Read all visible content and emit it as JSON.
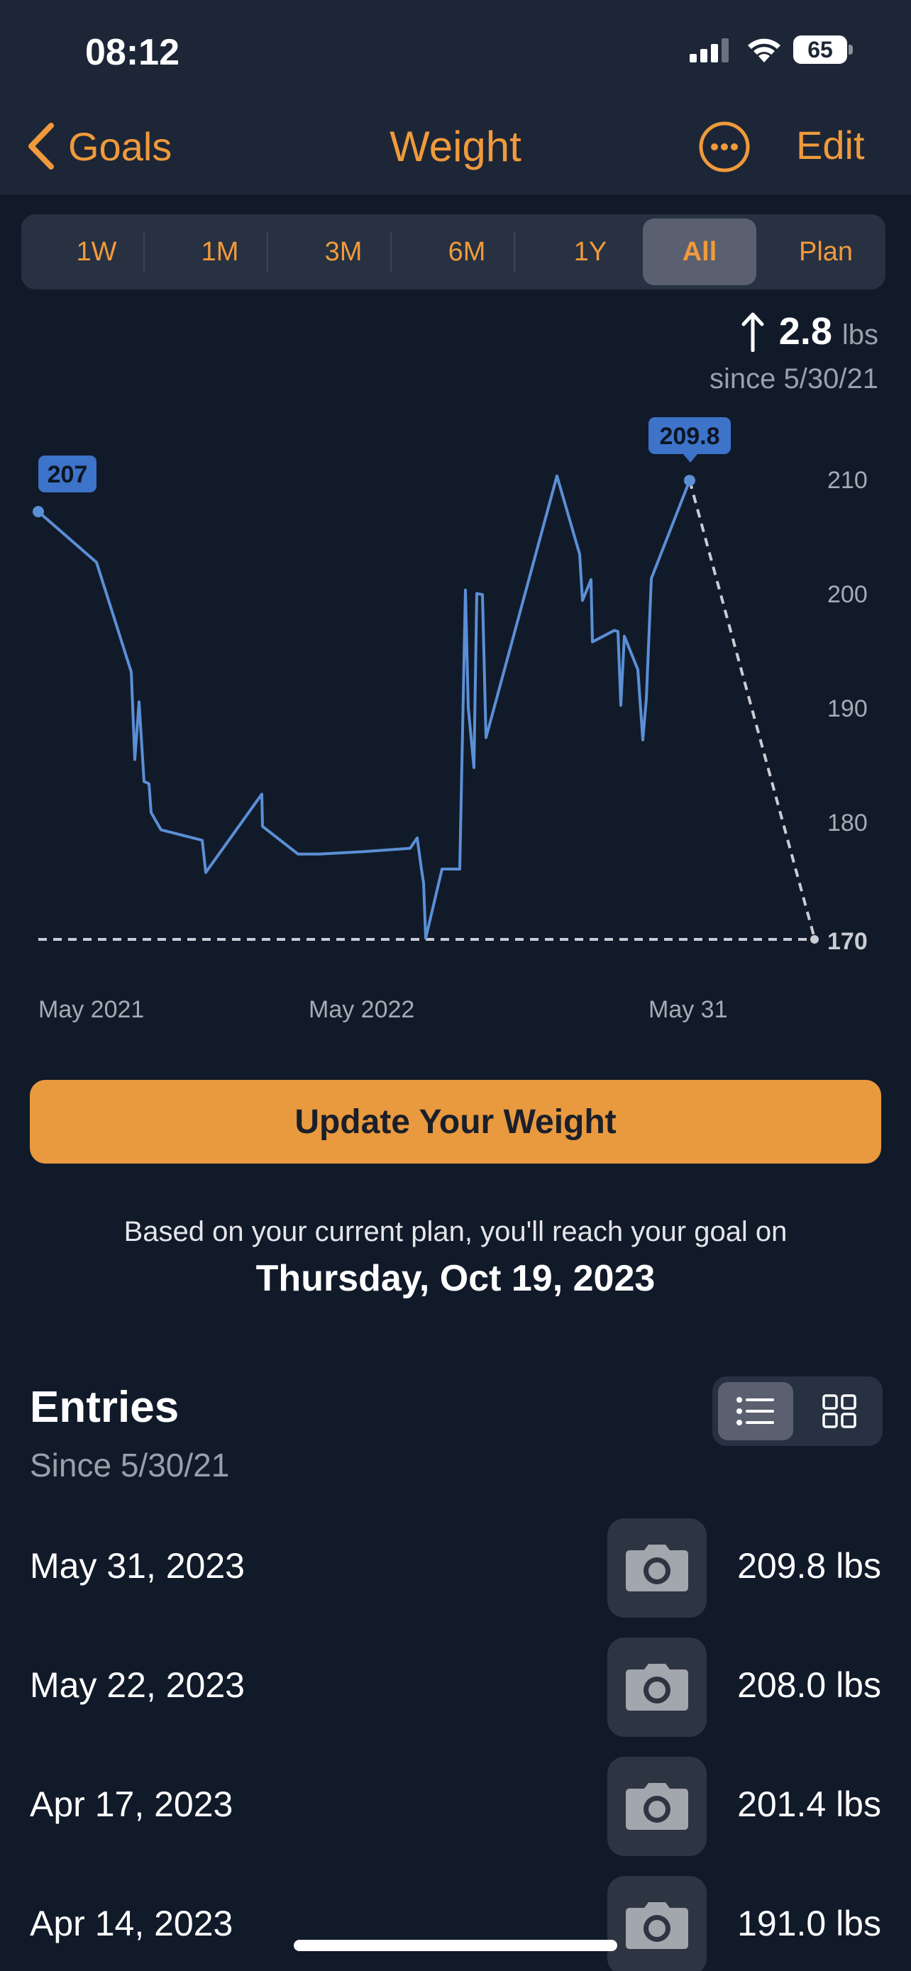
{
  "status_bar": {
    "time": "08:12",
    "battery": "65"
  },
  "nav": {
    "back_label": "Goals",
    "title": "Weight",
    "edit_label": "Edit"
  },
  "ranges": {
    "items": [
      "1W",
      "1M",
      "3M",
      "6M",
      "1Y",
      "All",
      "Plan"
    ],
    "selected": "All"
  },
  "change": {
    "value": "2.8",
    "unit": "lbs",
    "since": "since 5/30/21"
  },
  "chart_data": {
    "type": "line",
    "x_tick_labels": [
      "May 2021",
      "May 2022",
      "May 31"
    ],
    "y_tick_labels": [
      "210",
      "200",
      "190",
      "180",
      "170"
    ],
    "ylim": [
      170,
      210
    ],
    "grid": false,
    "start_label": "207",
    "end_label": "209.8",
    "goal_value": 170,
    "goal_label": "170",
    "series": [
      {
        "values": [
          207.1,
          202.7,
          193.2,
          185.6,
          190.6,
          183.7,
          183.5,
          181.0,
          179.5,
          178.6,
          175.8,
          182.6,
          179.8,
          177.4,
          177.4,
          177.6,
          177.9,
          178.8,
          176.1,
          174.9,
          170.1,
          176.1,
          176.1,
          200.3,
          190.1,
          184.9,
          200.0,
          199.9,
          187.5,
          210.2,
          203.4,
          199.4,
          201.2,
          195.8,
          196.8,
          196.7,
          190.3,
          196.3,
          193.4,
          187.3,
          190.9,
          201.3,
          209.8
        ]
      },
      {
        "values": [
          209.8,
          170.1
        ]
      }
    ]
  },
  "update_label": "Update Your Weight",
  "plan_text": "Based on your current plan, you'll reach your goal on",
  "goal_date": "Thursday, Oct 19, 2023",
  "entries": {
    "title": "Entries",
    "subtitle": "Since 5/30/21",
    "rows": [
      {
        "date": "May 31, 2023",
        "weight": "209.8 lbs"
      },
      {
        "date": "May 22, 2023",
        "weight": "208.0 lbs"
      },
      {
        "date": "Apr 17, 2023",
        "weight": "201.4 lbs"
      },
      {
        "date": "Apr 14, 2023",
        "weight": "191.0 lbs"
      }
    ]
  },
  "colors": {
    "accent": "#f09a3b",
    "line": "#5b8fd6",
    "background": "#111a29"
  }
}
